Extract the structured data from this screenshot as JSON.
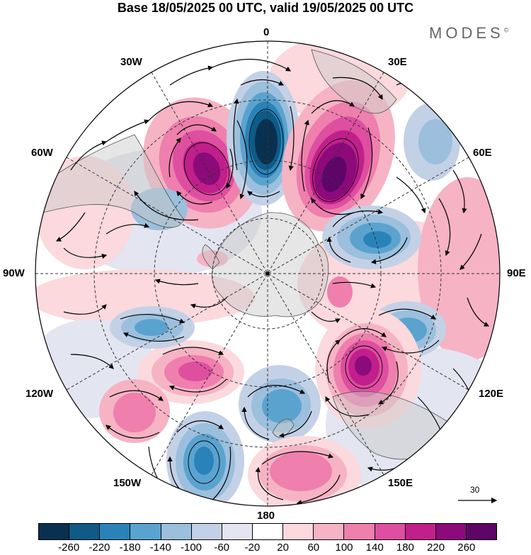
{
  "title": "Base 18/05/2025 00 UTC, valid 19/05/2025 00 UTC",
  "logo": {
    "text": "MODES",
    "mark": "©"
  },
  "longitude_labels": {
    "top": "0",
    "top_right": "30E",
    "right_upper": "60E",
    "right": "90E",
    "right_lower": "120E",
    "bottom_right": "150E",
    "bottom": "180",
    "bottom_left": "150W",
    "left_lower": "120W",
    "left": "90W",
    "left_upper": "60W",
    "top_left": "30W"
  },
  "reference_vector": {
    "value": "30"
  },
  "colorbar": {
    "colors": [
      "#0a3050",
      "#0f5a86",
      "#2a83b8",
      "#5ba3cf",
      "#9bbfdc",
      "#c3d1e6",
      "#e3e5f1",
      "#ffffff",
      "#fbd9dd",
      "#f6b3c4",
      "#ef7fad",
      "#de4fa0",
      "#c11f8b",
      "#8c0a7a",
      "#5e0568"
    ],
    "ticks": [
      "-260",
      "-220",
      "-180",
      "-140",
      "-100",
      "-60",
      "-20",
      "20",
      "60",
      "100",
      "140",
      "180",
      "220",
      "260"
    ]
  }
}
